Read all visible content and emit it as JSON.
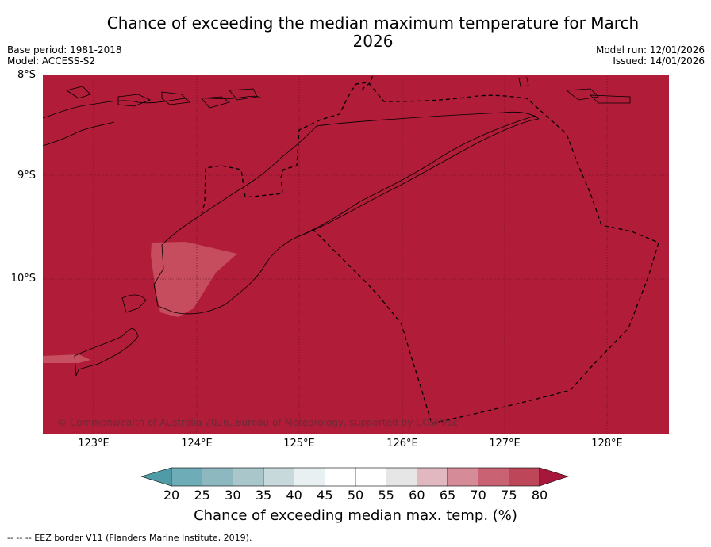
{
  "title": "Chance of exceeding the median maximum temperature for March 2026",
  "meta_left": {
    "base_period": "Base period: 1981-2018",
    "model": "Model: ACCESS-S2"
  },
  "meta_right": {
    "model_run": "Model run: 12/01/2026",
    "issued": "Issued: 14/01/2026"
  },
  "map": {
    "lat_labels": [
      "8°S",
      "9°S",
      "10°S"
    ],
    "lon_labels": [
      "123°E",
      "124°E",
      "125°E",
      "126°E",
      "127°E",
      "128°E"
    ],
    "copyright": "© Commonwealth of Australia 2026, Bureau of Meteorology, supported by COSPPac",
    "background_category": "80",
    "background_color": "#b11c39",
    "patch_color": "#c6505f"
  },
  "colorbar": {
    "ticks": [
      "20",
      "25",
      "30",
      "35",
      "40",
      "45",
      "50",
      "55",
      "60",
      "65",
      "70",
      "75",
      "80"
    ],
    "colors": [
      "#4f9ba6",
      "#6eadb8",
      "#8db8c0",
      "#a9c7cb",
      "#c8d9dc",
      "#e9f0f1",
      "#ffffff",
      "#ffffff",
      "#e6e6e6",
      "#e2b8c0",
      "#d68b98",
      "#c96272",
      "#bd4659",
      "#a6173b"
    ],
    "label": "Chance of exceeding median max. temp. (%)"
  },
  "footer": "--  --  -- EEZ border V11 (Flanders Marine Institute, 2019)."
}
